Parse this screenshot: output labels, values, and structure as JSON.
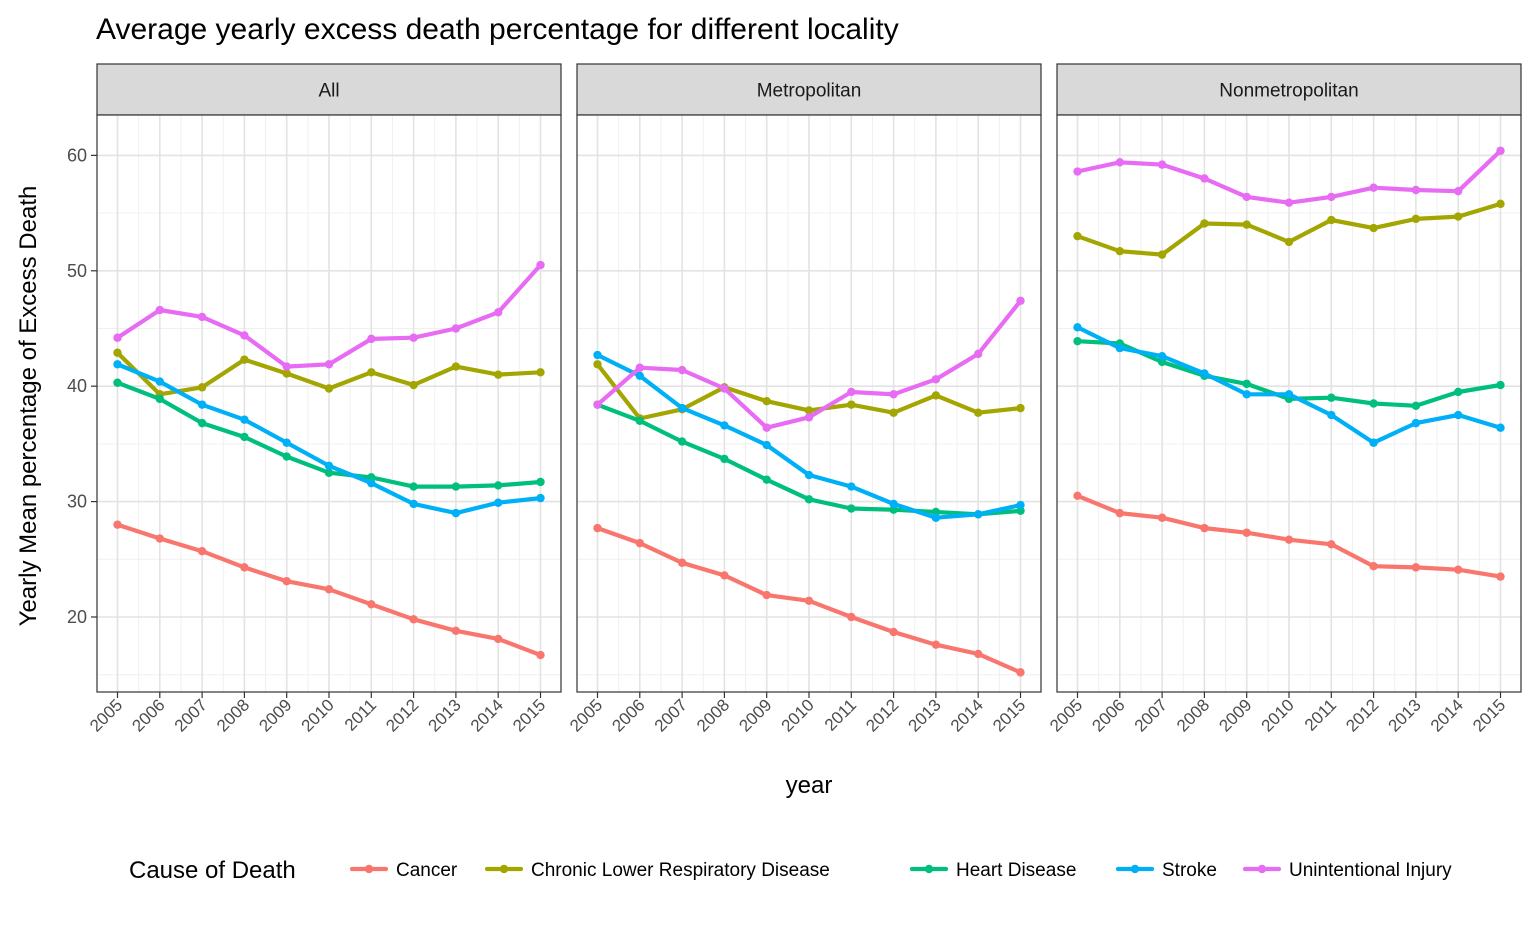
{
  "chart_data": {
    "type": "line",
    "title": "Average yearly excess death percentage for different locality",
    "xlabel": "year",
    "ylabel": "Yearly Mean percentage of Excess Death",
    "legend_title": "Cause of Death",
    "legend_position": "bottom",
    "grid": true,
    "x": [
      2005,
      2006,
      2007,
      2008,
      2009,
      2010,
      2011,
      2012,
      2013,
      2014,
      2015
    ],
    "ylim": [
      13.5,
      63.5
    ],
    "yticks": [
      20,
      30,
      40,
      50,
      60
    ],
    "series_names": [
      "Cancer",
      "Chronic Lower Respiratory Disease",
      "Heart Disease",
      "Stroke",
      "Unintentional Injury"
    ],
    "colors": {
      "Cancer": "#F8766D",
      "Chronic Lower Respiratory Disease": "#A3A500",
      "Heart Disease": "#00BF7D",
      "Stroke": "#00B0F6",
      "Unintentional Injury": "#E76BF3"
    },
    "panels": [
      {
        "name": "All",
        "series": [
          {
            "name": "Cancer",
            "values": [
              28.0,
              26.8,
              25.7,
              24.3,
              23.1,
              22.4,
              21.1,
              19.8,
              18.8,
              18.1,
              16.7
            ]
          },
          {
            "name": "Chronic Lower Respiratory Disease",
            "values": [
              42.9,
              39.3,
              39.9,
              42.3,
              41.1,
              39.8,
              41.2,
              40.1,
              41.7,
              41.0,
              41.2
            ]
          },
          {
            "name": "Heart Disease",
            "values": [
              40.3,
              38.9,
              36.8,
              35.6,
              33.9,
              32.5,
              32.1,
              31.3,
              31.3,
              31.4,
              31.7
            ]
          },
          {
            "name": "Stroke",
            "values": [
              41.9,
              40.4,
              38.4,
              37.1,
              35.1,
              33.1,
              31.6,
              29.8,
              29.0,
              29.9,
              30.3
            ]
          },
          {
            "name": "Unintentional Injury",
            "values": [
              44.2,
              46.6,
              46.0,
              44.4,
              41.7,
              41.9,
              44.1,
              44.2,
              45.0,
              46.4,
              50.5
            ]
          }
        ]
      },
      {
        "name": "Metropolitan",
        "series": [
          {
            "name": "Cancer",
            "values": [
              27.7,
              26.4,
              24.7,
              23.6,
              21.9,
              21.4,
              20.0,
              18.7,
              17.6,
              16.8,
              15.2
            ]
          },
          {
            "name": "Chronic Lower Respiratory Disease",
            "values": [
              41.9,
              37.2,
              38.0,
              39.9,
              38.7,
              37.9,
              38.4,
              37.7,
              39.2,
              37.7,
              38.1
            ]
          },
          {
            "name": "Heart Disease",
            "values": [
              38.4,
              37.0,
              35.2,
              33.7,
              31.9,
              30.2,
              29.4,
              29.3,
              29.1,
              28.9,
              29.2
            ]
          },
          {
            "name": "Stroke",
            "values": [
              42.7,
              40.9,
              38.1,
              36.6,
              34.9,
              32.3,
              31.3,
              29.8,
              28.6,
              28.9,
              29.7
            ]
          },
          {
            "name": "Unintentional Injury",
            "values": [
              38.4,
              41.6,
              41.4,
              39.8,
              36.4,
              37.3,
              39.5,
              39.3,
              40.6,
              42.8,
              47.4
            ]
          }
        ]
      },
      {
        "name": "Nonmetropolitan",
        "series": [
          {
            "name": "Cancer",
            "values": [
              30.5,
              29.0,
              28.6,
              27.7,
              27.3,
              26.7,
              26.3,
              24.4,
              24.3,
              24.1,
              23.5
            ]
          },
          {
            "name": "Chronic Lower Respiratory Disease",
            "values": [
              53.0,
              51.7,
              51.4,
              54.1,
              54.0,
              52.5,
              54.4,
              53.7,
              54.5,
              54.7,
              55.8
            ]
          },
          {
            "name": "Heart Disease",
            "values": [
              43.9,
              43.7,
              42.1,
              40.9,
              40.2,
              38.9,
              39.0,
              38.5,
              38.3,
              39.5,
              40.1
            ]
          },
          {
            "name": "Stroke",
            "values": [
              45.1,
              43.3,
              42.6,
              41.1,
              39.3,
              39.3,
              37.5,
              35.1,
              36.8,
              37.5,
              36.4
            ]
          },
          {
            "name": "Unintentional Injury",
            "values": [
              58.6,
              59.4,
              59.2,
              58.0,
              56.4,
              55.9,
              56.4,
              57.2,
              57.0,
              56.9,
              60.4
            ]
          }
        ]
      }
    ]
  }
}
